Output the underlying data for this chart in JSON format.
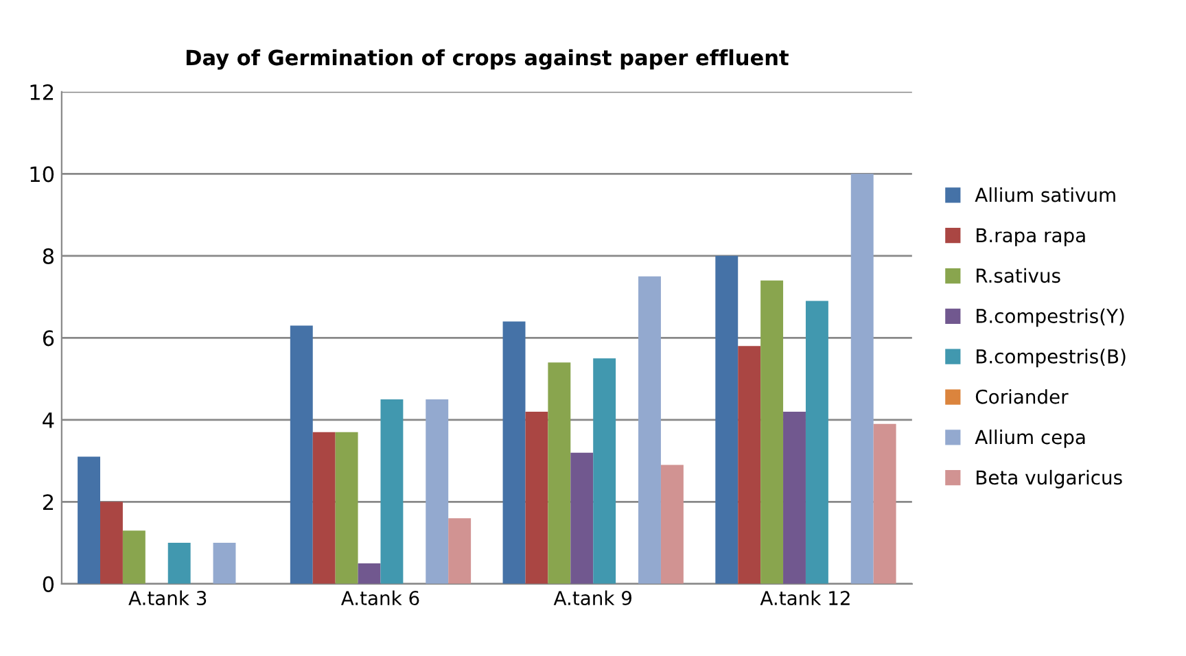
{
  "chart_data": {
    "type": "bar",
    "title": "Day of Germination of crops against paper effluent",
    "categories": [
      "A.tank 3",
      "A.tank 6",
      "A.tank 9",
      "A.tank 12"
    ],
    "series": [
      {
        "name": "Allium sativum",
        "color": "#4572a7",
        "values": [
          3.1,
          6.3,
          6.4,
          8.0
        ]
      },
      {
        "name": "B.rapa rapa",
        "color": "#aa4643",
        "values": [
          2.0,
          3.7,
          4.2,
          5.8
        ]
      },
      {
        "name": "R.sativus",
        "color": "#89a54e",
        "values": [
          1.3,
          3.7,
          5.4,
          7.4
        ]
      },
      {
        "name": "B.compestris(Y)",
        "color": "#71588f",
        "values": [
          0,
          0.5,
          3.2,
          4.2
        ]
      },
      {
        "name": "B.compestris(B)",
        "color": "#4198af",
        "values": [
          1.0,
          4.5,
          5.5,
          6.9
        ]
      },
      {
        "name": "Coriander",
        "color": "#db843d",
        "values": [
          0,
          0,
          0,
          0
        ]
      },
      {
        "name": "Allium cepa",
        "color": "#93a9cf",
        "values": [
          1.0,
          4.5,
          7.5,
          10.0
        ]
      },
      {
        "name": "Beta vulgaricus",
        "color": "#d19392",
        "values": [
          0,
          1.6,
          2.9,
          3.9
        ]
      }
    ],
    "ylim": [
      0,
      12
    ],
    "yticks": [
      0,
      2,
      4,
      6,
      8,
      10,
      12
    ],
    "grid": "y",
    "legend": "right"
  }
}
